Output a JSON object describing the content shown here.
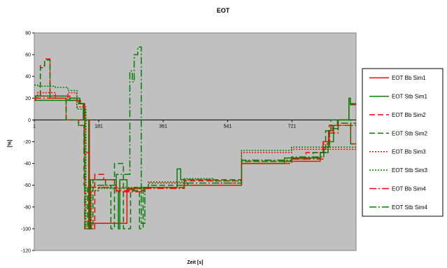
{
  "chart_data": {
    "type": "line",
    "title": "EOT",
    "xlabel": "Zeit [s]",
    "ylabel": "[%]",
    "xlim": [
      1,
      900
    ],
    "ylim": [
      -120,
      80
    ],
    "y_ticks": [
      80,
      60,
      40,
      20,
      0,
      -20,
      -40,
      -60,
      -80,
      -100,
      -120
    ],
    "x_ticks": [
      1,
      181,
      361,
      541,
      721
    ],
    "grid": false,
    "plot_background": "#c0c0c0",
    "legend_position": "right",
    "series": [
      {
        "name": "EOT Bb Sim1",
        "color": "#ff0000",
        "dash": "solid",
        "x": [
          1,
          5,
          5,
          100,
          100,
          130,
          130,
          140,
          140,
          155,
          155,
          160,
          160,
          260,
          260,
          280,
          280,
          290,
          290,
          300,
          300,
          400,
          400,
          580,
          580,
          700,
          700,
          800,
          800,
          808,
          808,
          823,
          823,
          835,
          835,
          850,
          850,
          880,
          880,
          884,
          884,
          890,
          890,
          900
        ],
        "y": [
          18,
          18,
          22,
          22,
          18,
          18,
          15,
          15,
          0,
          0,
          -100,
          -100,
          -95,
          -95,
          -64,
          -64,
          -62,
          -62,
          -63,
          -63,
          -62,
          -62,
          -60,
          -60,
          -40,
          -40,
          -38,
          -38,
          -30,
          -30,
          -20,
          -20,
          -10,
          -10,
          -5,
          -5,
          0,
          0,
          20,
          20,
          15,
          15,
          14,
          14
        ]
      },
      {
        "name": "EOT Stb Sim1",
        "color": "#008000",
        "dash": "solid",
        "x": [
          1,
          5,
          5,
          100,
          100,
          128,
          128,
          138,
          138,
          153,
          153,
          158,
          158,
          230,
          230,
          236,
          236,
          240,
          240,
          260,
          260,
          300,
          300,
          400,
          400,
          410,
          410,
          420,
          420,
          430,
          430,
          580,
          580,
          700,
          700,
          800,
          800,
          822,
          822,
          837,
          837,
          848,
          848,
          880,
          880,
          884,
          884,
          890,
          890,
          900
        ],
        "y": [
          20,
          20,
          18,
          18,
          20,
          20,
          15,
          15,
          0,
          0,
          -100,
          -100,
          -55,
          -55,
          -65,
          -65,
          -100,
          -100,
          -55,
          -55,
          -63,
          -63,
          -62,
          -62,
          -45,
          -45,
          -55,
          -55,
          -58,
          -58,
          -60,
          -60,
          -40,
          -40,
          -35,
          -35,
          -30,
          -30,
          -20,
          -20,
          -5,
          -5,
          0,
          0,
          20,
          20,
          14,
          14,
          15,
          15
        ]
      },
      {
        "name": "EOT Bb Sim2",
        "color": "#ff0000",
        "dash": "8,4",
        "x": [
          1,
          18,
          18,
          30,
          30,
          45,
          45,
          90,
          90,
          125,
          125,
          140,
          140,
          155,
          155,
          170,
          170,
          195,
          195,
          230,
          230,
          310,
          310,
          420,
          420,
          580,
          580,
          720,
          720,
          760,
          760,
          810,
          810,
          825,
          825,
          885,
          885,
          900
        ],
        "y": [
          20,
          20,
          50,
          50,
          56,
          56,
          20,
          20,
          0,
          0,
          -5,
          -5,
          -30,
          -30,
          -100,
          -100,
          -50,
          -50,
          -55,
          -55,
          -65,
          -65,
          -62,
          -62,
          -56,
          -56,
          -38,
          -38,
          -36,
          -36,
          -30,
          -30,
          -25,
          -25,
          -5,
          -5,
          -22,
          -22
        ]
      },
      {
        "name": "EOT Stb Sim2",
        "color": "#008000",
        "dash": "8,4",
        "x": [
          1,
          18,
          18,
          30,
          30,
          45,
          45,
          90,
          90,
          125,
          125,
          140,
          140,
          150,
          150,
          165,
          165,
          200,
          200,
          215,
          215,
          225,
          225,
          250,
          250,
          270,
          270,
          295,
          295,
          305,
          305,
          320,
          320,
          420,
          420,
          580,
          580,
          720,
          720,
          780,
          780,
          815,
          815,
          830,
          830,
          885,
          885,
          900
        ],
        "y": [
          20,
          20,
          48,
          48,
          55,
          55,
          20,
          20,
          0,
          0,
          -5,
          -5,
          -60,
          -60,
          -100,
          -100,
          -55,
          -55,
          -60,
          -60,
          -100,
          -100,
          -40,
          -40,
          -100,
          -100,
          -65,
          -65,
          -100,
          -100,
          -63,
          -63,
          -60,
          -60,
          -55,
          -55,
          -38,
          -38,
          -35,
          -35,
          -30,
          -30,
          -10,
          -10,
          0,
          0,
          -22,
          -22
        ]
      },
      {
        "name": "EOT Bb Sim3",
        "color": "#ff0000",
        "dash": "2,2",
        "x": [
          1,
          10,
          10,
          60,
          60,
          95,
          95,
          120,
          120,
          145,
          145,
          160,
          160,
          180,
          180,
          260,
          260,
          320,
          320,
          420,
          420,
          500,
          500,
          580,
          580,
          720,
          720,
          900
        ],
        "y": [
          20,
          20,
          25,
          25,
          20,
          20,
          25,
          25,
          12,
          12,
          -98,
          -98,
          -65,
          -65,
          -62,
          -62,
          -63,
          -63,
          -58,
          -58,
          -55,
          -55,
          -58,
          -58,
          -30,
          -30,
          -27,
          -27
        ]
      },
      {
        "name": "EOT Stb Sim3",
        "color": "#008000",
        "dash": "2,2",
        "x": [
          1,
          10,
          10,
          60,
          60,
          95,
          95,
          120,
          120,
          145,
          145,
          160,
          160,
          180,
          180,
          260,
          260,
          320,
          320,
          420,
          420,
          500,
          500,
          580,
          580,
          720,
          720,
          900
        ],
        "y": [
          32,
          32,
          31,
          31,
          30,
          30,
          27,
          27,
          10,
          10,
          -98,
          -98,
          -65,
          -65,
          -63,
          -63,
          -62,
          -62,
          -57,
          -57,
          -54,
          -54,
          -56,
          -56,
          -28,
          -28,
          -25,
          -25
        ]
      },
      {
        "name": "EOT Bb Sim4",
        "color": "#ff0000",
        "dash": "10,3,2,3",
        "x": [
          1,
          15,
          15,
          95,
          95,
          125,
          125,
          142,
          142,
          158,
          158,
          230,
          230,
          310,
          310,
          420,
          420,
          580,
          580,
          720,
          720,
          810,
          810,
          826,
          826,
          850,
          850,
          900
        ],
        "y": [
          20,
          20,
          20,
          20,
          18,
          18,
          15,
          15,
          -100,
          -100,
          -62,
          -62,
          -66,
          -66,
          -63,
          -63,
          -60,
          -60,
          -40,
          -40,
          -36,
          -36,
          -22,
          -22,
          -12,
          -12,
          -5,
          -5
        ]
      },
      {
        "name": "EOT Stb Sim4",
        "color": "#008000",
        "dash": "10,3,2,3",
        "x": [
          1,
          15,
          15,
          95,
          95,
          125,
          125,
          142,
          142,
          158,
          158,
          230,
          230,
          268,
          268,
          275,
          275,
          280,
          280,
          290,
          290,
          300,
          300,
          310,
          310,
          420,
          420,
          580,
          580,
          720,
          720,
          810,
          810,
          826,
          826,
          850,
          850,
          900
        ],
        "y": [
          22,
          22,
          22,
          22,
          18,
          18,
          15,
          15,
          -100,
          -100,
          -60,
          -60,
          -50,
          -50,
          45,
          45,
          35,
          35,
          60,
          60,
          67,
          67,
          -95,
          -95,
          -62,
          -62,
          -58,
          -58,
          -37,
          -37,
          -34,
          -34,
          -25,
          -25,
          -8,
          -8,
          -3,
          -3
        ]
      }
    ]
  }
}
